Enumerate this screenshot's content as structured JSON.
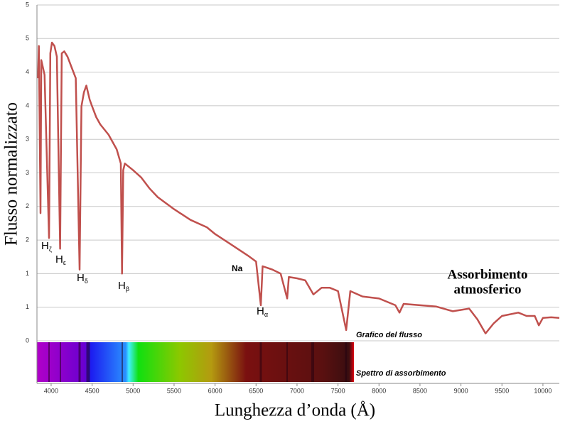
{
  "chart_data": {
    "type": "line",
    "xlabel": "Lunghezza d’onda (Å)",
    "ylabel": "Flusso normalizzato",
    "xlim": [
      3827,
      10200
    ],
    "ylim": [
      0,
      5
    ],
    "xticks": [
      4000,
      4500,
      5000,
      5500,
      6000,
      6500,
      7000,
      7500,
      8000,
      8500,
      9000,
      9500,
      10000
    ],
    "yticks": [
      0,
      {
        "value": 0.5,
        "label": "1"
      },
      1,
      {
        "value": 1.5,
        "label": "2"
      },
      2,
      {
        "value": 2.5,
        "label": "3"
      },
      3,
      {
        "value": 3.5,
        "label": "4"
      },
      4,
      {
        "value": 4.5,
        "label": "5"
      },
      5
    ],
    "grid": true,
    "series": [
      {
        "name": "Grafico del flusso",
        "color": "#c0504d",
        "x": [
          3840,
          3850,
          3870,
          3880,
          3900,
          3920,
          3974,
          3990,
          4010,
          4040,
          4070,
          4110,
          4130,
          4160,
          4200,
          4250,
          4300,
          4347,
          4370,
          4400,
          4430,
          4470,
          4500,
          4550,
          4600,
          4700,
          4800,
          4850,
          4865,
          4880,
          4900,
          5000,
          5100,
          5200,
          5300,
          5500,
          5700,
          5900,
          6000,
          6200,
          6300,
          6400,
          6500,
          6558,
          6580,
          6700,
          6800,
          6880,
          6900,
          7000,
          7100,
          7200,
          7300,
          7400,
          7500,
          7600,
          7650,
          7800,
          8000,
          8200,
          8250,
          8300,
          8500,
          8700,
          8900,
          9100,
          9200,
          9300,
          9400,
          9500,
          9700,
          9800,
          9900,
          9950,
          10000,
          10100,
          10200
        ],
        "values": [
          3.91,
          4.39,
          1.9,
          4.18,
          4.07,
          3.96,
          1.53,
          4.28,
          4.44,
          4.39,
          4.23,
          1.37,
          4.28,
          4.31,
          4.23,
          4.07,
          3.91,
          1.06,
          3.49,
          3.7,
          3.8,
          3.59,
          3.49,
          3.33,
          3.22,
          3.07,
          2.85,
          2.64,
          1.0,
          2.54,
          2.64,
          2.54,
          2.43,
          2.27,
          2.14,
          1.96,
          1.8,
          1.69,
          1.59,
          1.43,
          1.35,
          1.27,
          1.18,
          0.53,
          1.11,
          1.06,
          1.0,
          0.63,
          0.95,
          0.93,
          0.9,
          0.69,
          0.79,
          0.79,
          0.74,
          0.16,
          0.74,
          0.66,
          0.63,
          0.53,
          0.42,
          0.55,
          0.53,
          0.51,
          0.44,
          0.48,
          0.32,
          0.11,
          0.26,
          0.37,
          0.42,
          0.37,
          0.37,
          0.23,
          0.34,
          0.35,
          0.34
        ]
      }
    ],
    "annotations": [
      {
        "text": "H",
        "sub": "ζ"
      },
      {
        "text": "H",
        "sub": "ε"
      },
      {
        "text": "H",
        "sub": "δ"
      },
      {
        "text": "H",
        "sub": "β"
      },
      {
        "text": "Na"
      },
      {
        "text": "H",
        "sub": "α"
      },
      {
        "lines": [
          "Assorbimento",
          "atmosferico"
        ]
      },
      {
        "text": "Grafico del flusso"
      },
      {
        "text": "Spettro di assorbimento"
      }
    ]
  }
}
